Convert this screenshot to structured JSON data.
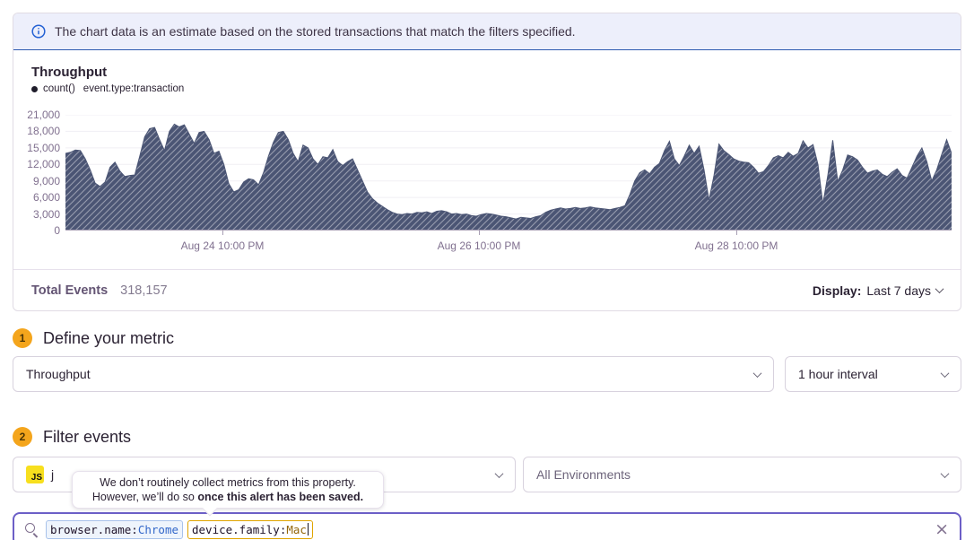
{
  "banner": {
    "text": "The chart data is an estimate based on the stored transactions that match the filters specified."
  },
  "chart_panel": {
    "title": "Throughput",
    "legend": {
      "series": "count()",
      "query": "event.type:transaction"
    },
    "footer": {
      "total_label": "Total Events",
      "total_value": "318,157",
      "display_label": "Display:",
      "display_value": "Last 7 days"
    }
  },
  "chart_data": {
    "type": "area",
    "title": "Throughput",
    "ylabel": "",
    "xlabel": "",
    "ylim": [
      0,
      21000
    ],
    "grid": true,
    "legend_position": "top-left",
    "fill_style": "diagonal-hatch",
    "yticks": [
      21000,
      18000,
      15000,
      12000,
      9000,
      6000,
      3000,
      0
    ],
    "ytick_labels": [
      "21,000",
      "18,000",
      "15,000",
      "12,000",
      "9,000",
      "6,000",
      "3,000",
      "0"
    ],
    "xticks": [
      {
        "label": "Aug 24 10:00 PM",
        "px": 175
      },
      {
        "label": "Aug 26 10:00 PM",
        "px": 461
      },
      {
        "label": "Aug 28 10:00 PM",
        "px": 748
      }
    ],
    "series": [
      {
        "name": "count() event.type:transaction",
        "values": [
          14000,
          14200,
          14600,
          14500,
          13000,
          11000,
          8600,
          8000,
          8800,
          11500,
          12400,
          10800,
          9800,
          10000,
          10100,
          13500,
          17000,
          18500,
          18700,
          16500,
          14500,
          18000,
          19300,
          18800,
          19200,
          17500,
          15800,
          17800,
          18000,
          16500,
          14000,
          14400,
          12000,
          8500,
          7000,
          7400,
          8800,
          9400,
          9200,
          8300,
          10500,
          13500,
          16000,
          17800,
          18000,
          16500,
          14000,
          12500,
          15500,
          15000,
          13000,
          12000,
          13400,
          13200,
          14700,
          12500,
          11800,
          12500,
          13000,
          11000,
          9000,
          7000,
          5800,
          5000,
          4400,
          3800,
          3300,
          3000,
          2900,
          3100,
          3000,
          3300,
          3200,
          3400,
          3100,
          3500,
          3600,
          3400,
          3000,
          3100,
          2900,
          3000,
          2700,
          2600,
          2900,
          3100,
          3000,
          2800,
          2600,
          2500,
          2300,
          2100,
          2400,
          2300,
          2200,
          2500,
          2700,
          3300,
          3700,
          3900,
          4100,
          3900,
          4000,
          4200,
          4000,
          4100,
          4300,
          4100,
          4000,
          3900,
          3800,
          4000,
          4200,
          4500,
          6500,
          9000,
          10500,
          11000,
          10300,
          11500,
          12200,
          14500,
          16200,
          13000,
          11800,
          13500,
          15500,
          14000,
          15300,
          11000,
          5500,
          10000,
          15700,
          14500,
          13800,
          13000,
          12600,
          12400,
          12300,
          11500,
          10400,
          10700,
          11800,
          13200,
          13600,
          13200,
          14200,
          13500,
          14000,
          16300,
          15000,
          15600,
          12000,
          4800,
          10000,
          16400,
          8900,
          11000,
          13700,
          13400,
          12800,
          11500,
          10400,
          10800,
          11000,
          10200,
          9800,
          10600,
          11200,
          10000,
          9500,
          11500,
          13500,
          15000,
          12500,
          9000,
          11000,
          13800,
          16500,
          14000
        ]
      }
    ]
  },
  "metric_section": {
    "step": "1",
    "heading": "Define your metric",
    "metric_select": "Throughput",
    "interval_select": "1 hour interval"
  },
  "filter_section": {
    "step": "2",
    "heading": "Filter events",
    "project_select": {
      "platform": "JS",
      "label": "j"
    },
    "environment_select": "All Environments"
  },
  "tooltip": {
    "line1": "We don’t routinely collect metrics from this property.",
    "line2_regular": "However, we’ll do so ",
    "line2_bold": "once this alert has been saved."
  },
  "search": {
    "tokens": [
      {
        "key": "browser.name:",
        "value": "Chrome",
        "state": "valid"
      },
      {
        "key": "device.family:",
        "value": "Mac",
        "state": "warning"
      }
    ],
    "clear_icon": "×"
  },
  "colors": {
    "accent_purple": "#6c5fc7",
    "banner_bg": "#edeffb",
    "banner_border": "#2f5bb0",
    "info_blue": "#2562d4",
    "badge_yellow": "#f4a51c",
    "area_fill": "#4b5574",
    "axis_label": "#80708f",
    "token_blue": "#3166c9",
    "token_warning_border": "#e0a400",
    "js_yellow": "#f7df1e"
  }
}
